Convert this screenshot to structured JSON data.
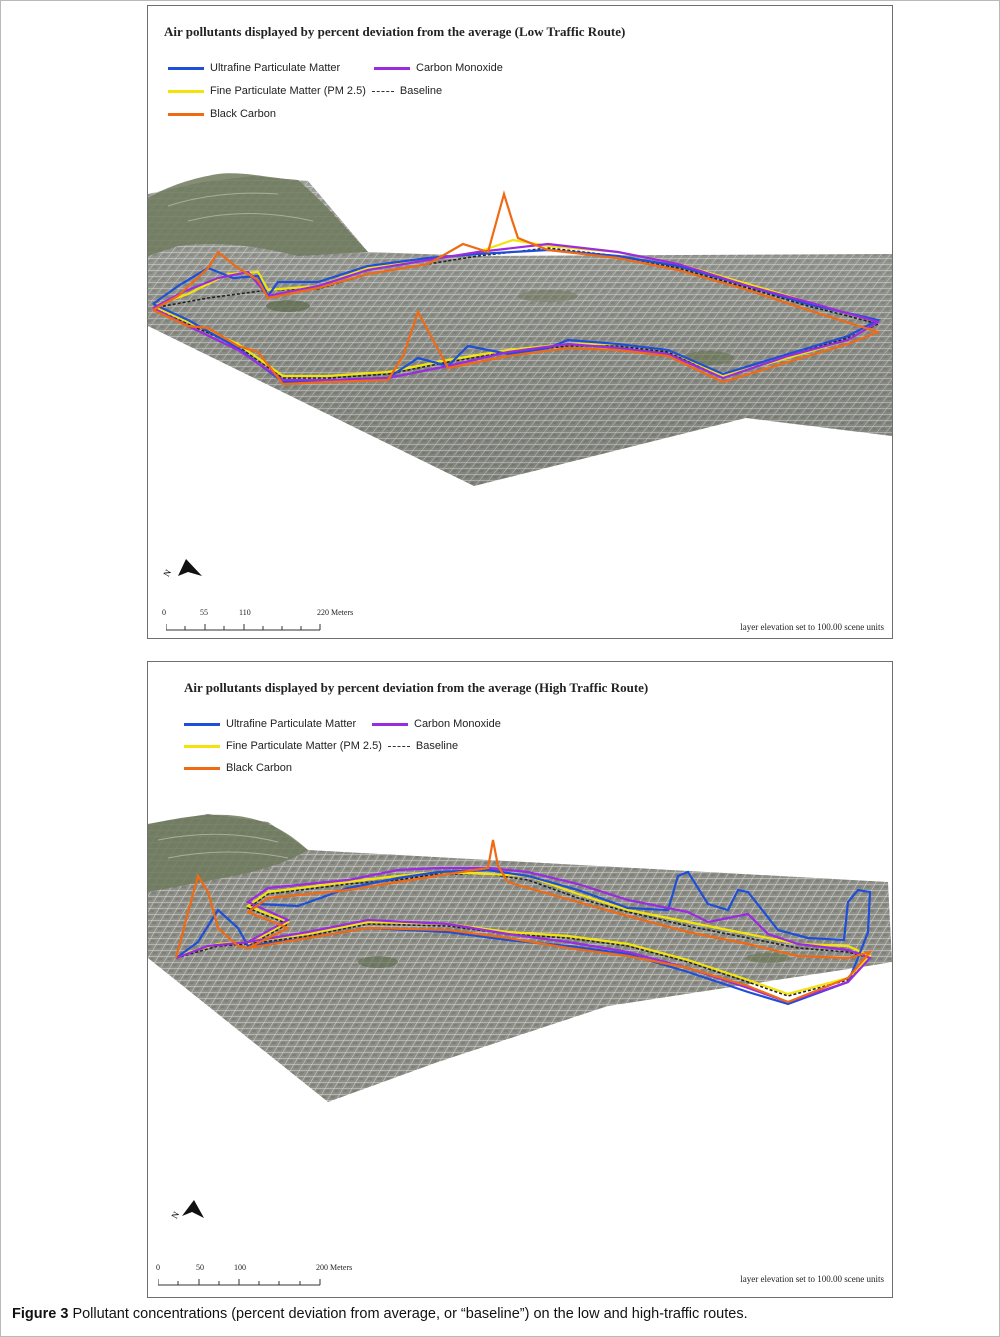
{
  "figure": {
    "label": "Figure 3",
    "caption": "Pollutant concentrations (percent deviation from average, or “baseline”) on the low and high-traffic routes."
  },
  "colors": {
    "ultrafine": "#1f4fd6",
    "carbon_monoxide": "#9b2be0",
    "fine_pm": "#f2e40a",
    "black_carbon": "#f06a14",
    "baseline": "#222222",
    "terrain": "#8d8f88",
    "streets": "#e8e8e6",
    "hill": "#6f7a5d"
  },
  "maps": [
    {
      "title": "Air pollutants displayed by percent deviation from the average (Low Traffic Route)",
      "legend": {
        "ultrafine": "Ultrafine Particulate Matter",
        "carbon_monoxide": "Carbon Monoxide",
        "fine_pm": "Fine Particulate Matter (PM 2.5)",
        "baseline": "Baseline",
        "black_carbon": "Black Carbon"
      },
      "north_label": "N",
      "north_icon": "north-arrow-icon",
      "scale": {
        "ticks": [
          "0",
          "55",
          "110",
          "220 Meters"
        ]
      },
      "elevation_note": "layer elevation set to 100.00 scene units"
    },
    {
      "title": "Air pollutants displayed by percent deviation from the average (High Traffic Route)",
      "legend": {
        "ultrafine": "Ultrafine Particulate Matter",
        "carbon_monoxide": "Carbon Monoxide",
        "fine_pm": "Fine Particulate Matter (PM 2.5)",
        "baseline": "Baseline",
        "black_carbon": "Black Carbon"
      },
      "north_label": "N",
      "north_icon": "north-arrow-icon",
      "scale": {
        "ticks": [
          "0",
          "50",
          "100",
          "200 Meters"
        ]
      },
      "elevation_note": "layer elevation set to 100.00 scene units"
    }
  ]
}
